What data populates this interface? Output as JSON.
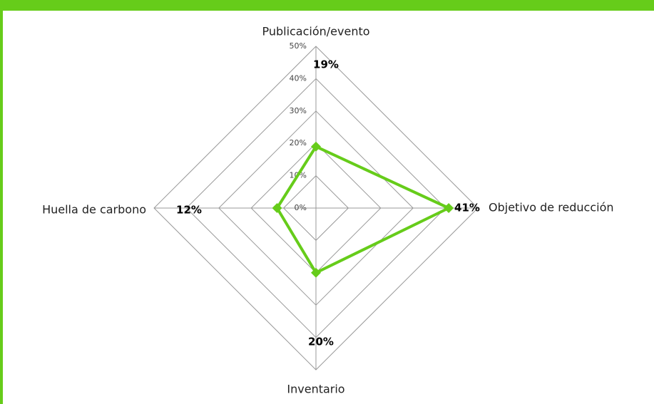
{
  "chart_data": {
    "type": "radar",
    "categories": [
      "Publicación/evento",
      "Objetivo de reducción",
      "Inventario",
      "Huella de carbono"
    ],
    "series": [
      {
        "name": null,
        "color": "#66cc1a",
        "values": [
          19,
          41,
          20,
          12
        ],
        "value_labels": [
          "19%",
          "41%",
          "20%",
          "12%"
        ]
      }
    ],
    "ylim": [
      0,
      50
    ],
    "yticks": [
      {
        "value": 0,
        "label": "0%"
      },
      {
        "value": 10,
        "label": "10%"
      },
      {
        "value": 20,
        "label": "20%"
      },
      {
        "value": 30,
        "label": "30%"
      },
      {
        "value": 40,
        "label": "40%"
      },
      {
        "value": 50,
        "label": "50%"
      }
    ],
    "grid": true
  }
}
